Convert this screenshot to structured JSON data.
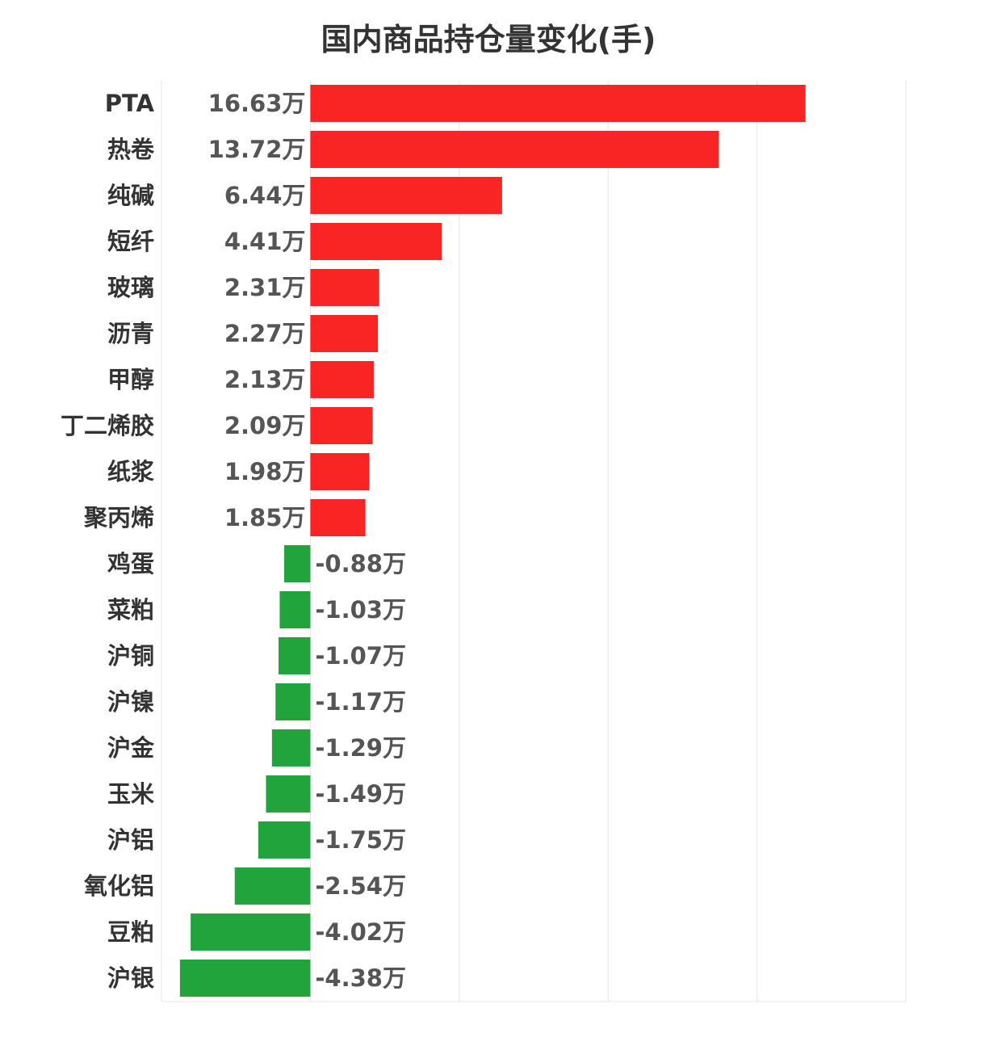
{
  "chart_data": {
    "type": "bar",
    "orientation": "horizontal",
    "title": "国内商品持仓量变化(手)",
    "unit": "万",
    "xlim": [
      -5,
      20
    ],
    "grid": true,
    "positive_color": "#f92424",
    "negative_color": "#21a43c",
    "categories": [
      "PTA",
      "热卷",
      "纯碱",
      "短纤",
      "玻璃",
      "沥青",
      "甲醇",
      "丁二烯胶",
      "纸浆",
      "聚丙烯",
      "鸡蛋",
      "菜粕",
      "沪铜",
      "沪镍",
      "沪金",
      "玉米",
      "沪铝",
      "氧化铝",
      "豆粕",
      "沪银"
    ],
    "values": [
      16.63,
      13.72,
      6.44,
      4.41,
      2.31,
      2.27,
      2.13,
      2.09,
      1.98,
      1.85,
      -0.88,
      -1.03,
      -1.07,
      -1.17,
      -1.29,
      -1.49,
      -1.75,
      -2.54,
      -4.02,
      -4.38
    ],
    "value_labels": [
      "16.63万",
      "13.72万",
      "6.44万",
      "4.41万",
      "2.31万",
      "2.27万",
      "2.13万",
      "2.09万",
      "1.98万",
      "1.85万",
      "-0.88万",
      "-1.03万",
      "-1.07万",
      "-1.17万",
      "-1.29万",
      "-1.49万",
      "-1.75万",
      "-2.54万",
      "-4.02万",
      "-4.38万"
    ]
  }
}
